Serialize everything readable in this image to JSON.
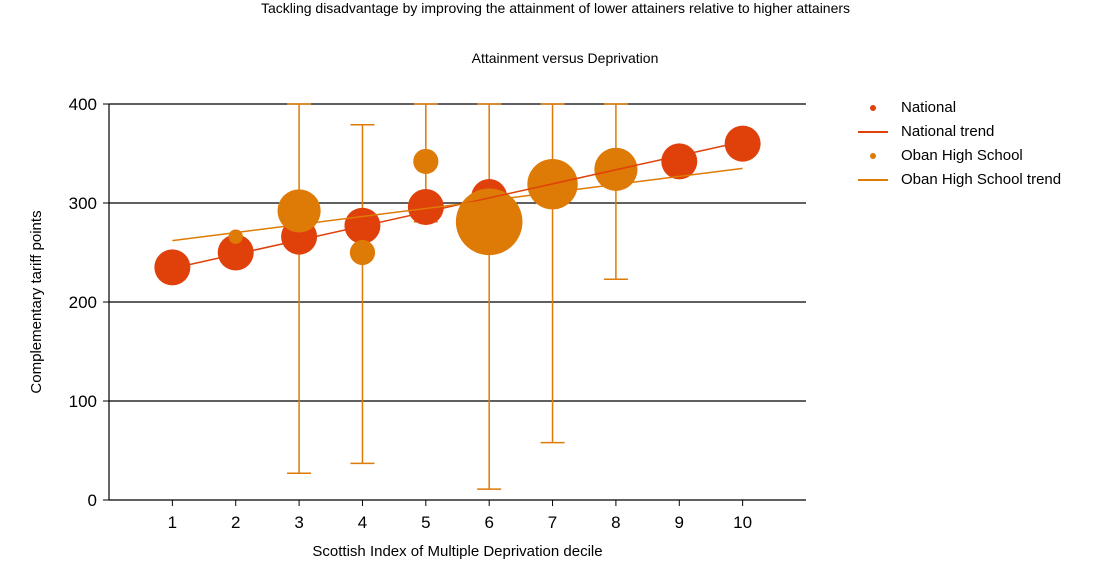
{
  "chart_data": {
    "type": "scatter",
    "title": "Tackling disadvantage by improving the attainment of lower attainers relative to higher attainers",
    "subtitle": "Attainment versus Deprivation",
    "xlabel": "Scottish Index of Multiple Deprivation decile",
    "ylabel": "Complementary tariff points",
    "xlim": [
      0,
      11
    ],
    "ylim": [
      0,
      400
    ],
    "x_ticks": [
      1,
      2,
      3,
      4,
      5,
      6,
      7,
      8,
      9,
      10
    ],
    "y_ticks": [
      0,
      100,
      200,
      300,
      400
    ],
    "grid": "horizontal",
    "legend_position": "right",
    "series": [
      {
        "name": "National",
        "kind": "bubble",
        "color": "#e0400a",
        "x": [
          1,
          2,
          3,
          4,
          5,
          6,
          9,
          10
        ],
        "y": [
          235,
          250,
          266,
          277,
          296,
          306,
          342,
          360
        ],
        "relative_size": [
          1,
          1,
          1,
          1,
          1,
          1,
          1,
          1
        ]
      },
      {
        "name": "National trend",
        "kind": "line",
        "color": "#e0400a",
        "x": [
          1,
          10
        ],
        "y": [
          234,
          362
        ]
      },
      {
        "name": "Oban High School",
        "kind": "bubble",
        "color": "#de7a06",
        "x": [
          2,
          3,
          4,
          5,
          6,
          7,
          8
        ],
        "y": [
          266,
          292,
          250,
          342,
          281,
          319,
          334
        ],
        "relative_size": [
          0.4,
          1.2,
          0.7,
          0.7,
          1.85,
          1.4,
          1.2
        ],
        "error_low": [
          null,
          27,
          37,
          281,
          11,
          58,
          223
        ],
        "error_high": [
          null,
          400,
          379,
          400,
          400,
          400,
          400
        ]
      },
      {
        "name": "Oban High School trend",
        "kind": "line",
        "color": "#de7a06",
        "x": [
          1,
          10
        ],
        "y": [
          262,
          335
        ]
      }
    ]
  }
}
